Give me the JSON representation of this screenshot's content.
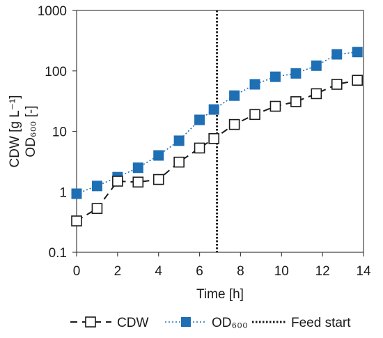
{
  "chart_data": {
    "type": "scatter",
    "ylabel_line1": "CDW [g L⁻¹]",
    "ylabel_line2": "OD₆₀₀ [-]",
    "xlabel": "Time [h]",
    "x_scale": "linear",
    "y_scale": "log",
    "xlim": [
      0,
      14
    ],
    "ylim": [
      0.1,
      1000
    ],
    "x_ticks": [
      "0",
      "2",
      "4",
      "6",
      "8",
      "10",
      "12",
      "14"
    ],
    "y_ticks": [
      "0.1",
      "1",
      "10",
      "100",
      "1000"
    ],
    "grid": false,
    "legend_position": "bottom",
    "series": [
      {
        "name": "CDW",
        "color": "#1a1a1a",
        "marker": "open-square",
        "line_style": "dashed",
        "x": [
          0,
          1,
          2,
          3,
          4,
          5,
          6,
          6.7,
          7.7,
          8.7,
          9.7,
          10.7,
          11.7,
          12.7,
          13.7
        ],
        "y": [
          0.33,
          0.53,
          1.5,
          1.45,
          1.6,
          3.1,
          5.3,
          7.6,
          13,
          19,
          26,
          31,
          42,
          60,
          70
        ]
      },
      {
        "name": "OD₆₀₀",
        "color": "#1f6fb4",
        "marker": "filled-square",
        "line_style": "dotted",
        "x": [
          0,
          1,
          2,
          3,
          4,
          5,
          6,
          6.7,
          7.7,
          8.7,
          9.7,
          10.7,
          11.7,
          12.7,
          13.7
        ],
        "y": [
          0.93,
          1.25,
          1.75,
          2.5,
          4.0,
          7.0,
          15.5,
          23,
          39,
          60,
          80,
          91,
          122,
          188,
          205
        ]
      }
    ],
    "annotations": [
      {
        "type": "vertical-line",
        "name": "Feed start",
        "x": 6.85,
        "line_style": "dotted",
        "color": "#1a1a1a"
      }
    ]
  }
}
